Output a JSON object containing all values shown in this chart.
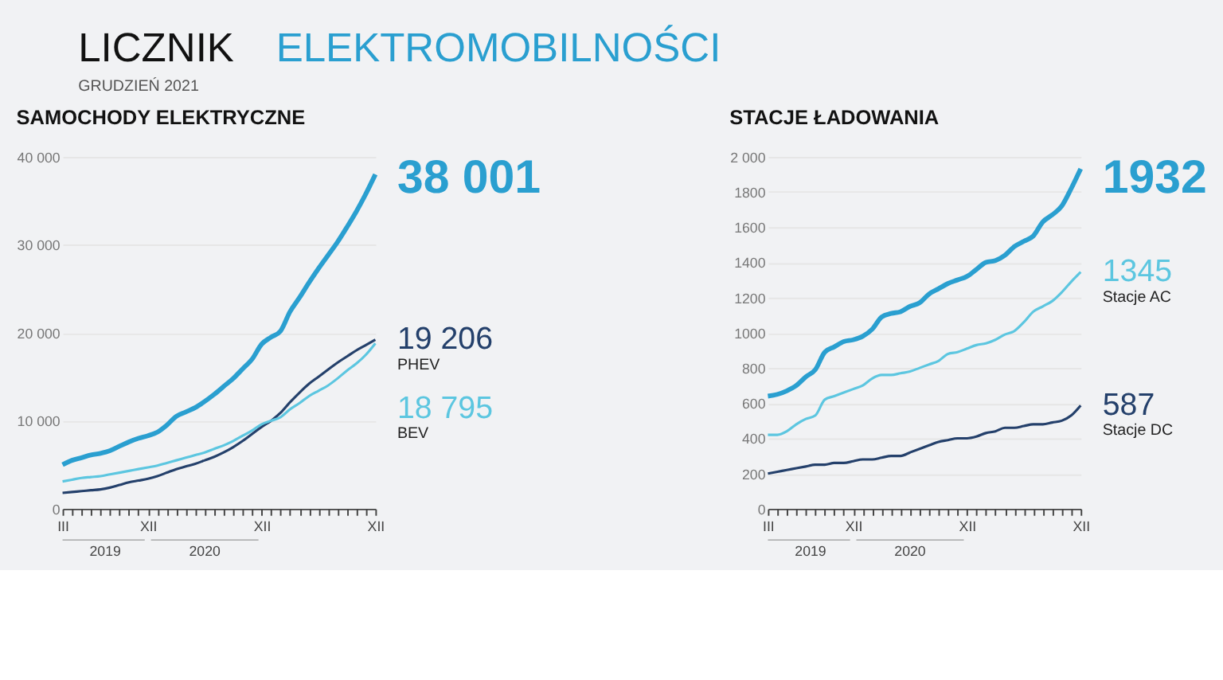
{
  "chart_data": [
    {
      "type": "other",
      "title": "LICZNIK ELEKTROMOBILNOŚCI",
      "subtitle": "GRUDZIEŃ 2021"
    },
    {
      "type": "line",
      "title": "SAMOCHODY ELEKTRYCZNE",
      "categories": [
        "III",
        null,
        null,
        null,
        null,
        null,
        null,
        null,
        null,
        "XII",
        null,
        null,
        null,
        null,
        null,
        null,
        null,
        null,
        null,
        null,
        null,
        "XII",
        null,
        null,
        null,
        null,
        null,
        null,
        null,
        null,
        null,
        null,
        null,
        "XII"
      ],
      "ylim": [
        0,
        40000
      ],
      "yticks": [
        0,
        {
          "value": 10000,
          "label": "10 000"
        },
        {
          "value": 20000,
          "label": "20 000"
        },
        {
          "value": 30000,
          "label": "30 000"
        },
        {
          "value": 40000,
          "label": "40 000"
        }
      ],
      "grid": "y",
      "annotations": [
        "2019",
        "2020"
      ],
      "series": [
        {
          "color": "#2a9fd0",
          "values": [
            5000,
            5500,
            5800,
            6100,
            6300,
            6600,
            7100,
            7600,
            8000,
            8300,
            8700,
            9500,
            10500,
            11000,
            11500,
            12200,
            13000,
            13900,
            14800,
            15900,
            17000,
            18700,
            19500,
            20200,
            22400,
            24000,
            25700,
            27300,
            28800,
            30300,
            32000,
            33800,
            35800,
            38001
          ],
          "value_labels": [
            null,
            null,
            null,
            null,
            null,
            null,
            null,
            null,
            null,
            null,
            null,
            null,
            null,
            null,
            null,
            null,
            null,
            null,
            null,
            null,
            null,
            null,
            null,
            null,
            null,
            null,
            null,
            null,
            null,
            null,
            null,
            null,
            null,
            "38 001"
          ]
        },
        {
          "name": "PHEV",
          "color": "#24406b",
          "values": [
            1800,
            1900,
            2000,
            2100,
            2200,
            2400,
            2700,
            3000,
            3200,
            3400,
            3700,
            4100,
            4500,
            4800,
            5100,
            5500,
            5900,
            6400,
            7000,
            7700,
            8500,
            9300,
            10000,
            10900,
            12100,
            13200,
            14200,
            15000,
            15800,
            16600,
            17300,
            18000,
            18600,
            19206
          ],
          "value_labels": [
            null,
            null,
            null,
            null,
            null,
            null,
            null,
            null,
            null,
            null,
            null,
            null,
            null,
            null,
            null,
            null,
            null,
            null,
            null,
            null,
            null,
            null,
            null,
            null,
            null,
            null,
            null,
            null,
            null,
            null,
            null,
            null,
            null,
            "19 206"
          ]
        },
        {
          "name": "BEV",
          "color": "#5cc6e0",
          "values": [
            3100,
            3300,
            3500,
            3600,
            3700,
            3900,
            4100,
            4300,
            4500,
            4700,
            4900,
            5200,
            5500,
            5800,
            6100,
            6400,
            6800,
            7200,
            7700,
            8300,
            8900,
            9600,
            10000,
            10400,
            11300,
            12000,
            12800,
            13400,
            14000,
            14800,
            15700,
            16500,
            17500,
            18795
          ],
          "value_labels": [
            null,
            null,
            null,
            null,
            null,
            null,
            null,
            null,
            null,
            null,
            null,
            null,
            null,
            null,
            null,
            null,
            null,
            null,
            null,
            null,
            null,
            null,
            null,
            null,
            null,
            null,
            null,
            null,
            null,
            null,
            null,
            null,
            null,
            "18 795"
          ]
        }
      ]
    },
    {
      "type": "line",
      "title": "STACJE ŁADOWANIA",
      "categories": [
        "III",
        null,
        null,
        null,
        null,
        null,
        null,
        null,
        null,
        "XII",
        null,
        null,
        null,
        null,
        null,
        null,
        null,
        null,
        null,
        null,
        null,
        "XII",
        null,
        null,
        null,
        null,
        null,
        null,
        null,
        null,
        null,
        null,
        null,
        "XII"
      ],
      "ylim": [
        0,
        2000
      ],
      "yticks": [
        0,
        200,
        400,
        600,
        800,
        1000,
        1200,
        1400,
        1600,
        1800,
        {
          "value": 2000,
          "label": "2 000"
        }
      ],
      "grid": "y",
      "annotations": [
        "2019",
        "2020"
      ],
      "series": [
        {
          "color": "#2a9fd0",
          "values": [
            640,
            650,
            670,
            700,
            750,
            790,
            890,
            920,
            950,
            960,
            980,
            1020,
            1090,
            1110,
            1120,
            1150,
            1170,
            1220,
            1250,
            1280,
            1300,
            1320,
            1360,
            1400,
            1410,
            1440,
            1490,
            1520,
            1550,
            1630,
            1670,
            1720,
            1820,
            1932
          ],
          "value_labels": [
            null,
            null,
            null,
            null,
            null,
            null,
            null,
            null,
            null,
            null,
            null,
            null,
            null,
            null,
            null,
            null,
            null,
            null,
            null,
            null,
            null,
            null,
            null,
            null,
            null,
            null,
            null,
            null,
            null,
            null,
            null,
            null,
            null,
            "1932"
          ]
        },
        {
          "name": "Stacje AC",
          "color": "#5cc6e0",
          "values": [
            420,
            420,
            440,
            480,
            510,
            530,
            620,
            640,
            660,
            680,
            700,
            740,
            760,
            760,
            770,
            780,
            800,
            820,
            840,
            880,
            890,
            910,
            930,
            940,
            960,
            990,
            1010,
            1060,
            1120,
            1150,
            1180,
            1230,
            1290,
            1345
          ],
          "value_labels": [
            null,
            null,
            null,
            null,
            null,
            null,
            null,
            null,
            null,
            null,
            null,
            null,
            null,
            null,
            null,
            null,
            null,
            null,
            null,
            null,
            null,
            null,
            null,
            null,
            null,
            null,
            null,
            null,
            null,
            null,
            null,
            null,
            null,
            "1345"
          ]
        },
        {
          "name": "Stacje DC",
          "color": "#24406b",
          "values": [
            200,
            210,
            220,
            230,
            240,
            250,
            250,
            260,
            260,
            270,
            280,
            280,
            290,
            300,
            300,
            320,
            340,
            360,
            380,
            390,
            400,
            400,
            410,
            430,
            440,
            460,
            460,
            470,
            480,
            480,
            490,
            500,
            530,
            587
          ],
          "value_labels": [
            null,
            null,
            null,
            null,
            null,
            null,
            null,
            null,
            null,
            null,
            null,
            null,
            null,
            null,
            null,
            null,
            null,
            null,
            null,
            null,
            null,
            null,
            null,
            null,
            null,
            null,
            null,
            null,
            null,
            null,
            null,
            null,
            null,
            "587"
          ]
        }
      ]
    }
  ]
}
